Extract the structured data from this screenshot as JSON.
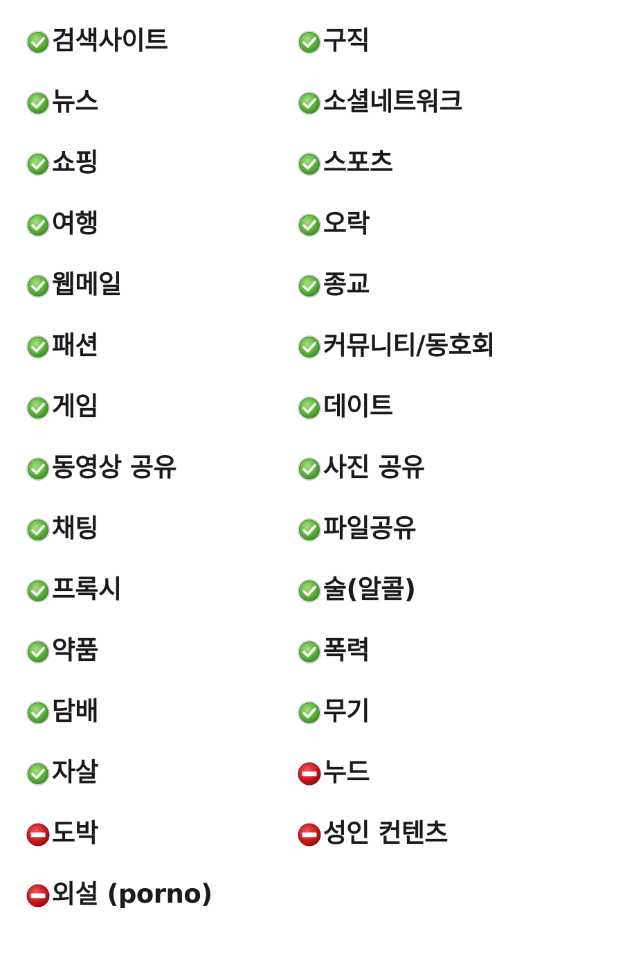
{
  "categories": [
    {
      "label": "검색사이트",
      "status": "allowed",
      "icon": "check-circle-icon"
    },
    {
      "label": "구직",
      "status": "allowed",
      "icon": "check-circle-icon"
    },
    {
      "label": "뉴스",
      "status": "allowed",
      "icon": "check-circle-icon"
    },
    {
      "label": "소셜네트워크",
      "status": "allowed",
      "icon": "check-circle-icon"
    },
    {
      "label": "쇼핑",
      "status": "allowed",
      "icon": "check-circle-icon"
    },
    {
      "label": "스포츠",
      "status": "allowed",
      "icon": "check-circle-icon"
    },
    {
      "label": "여행",
      "status": "allowed",
      "icon": "check-circle-icon"
    },
    {
      "label": "오락",
      "status": "allowed",
      "icon": "check-circle-icon"
    },
    {
      "label": "웹메일",
      "status": "allowed",
      "icon": "check-circle-icon"
    },
    {
      "label": "종교",
      "status": "allowed",
      "icon": "check-circle-icon"
    },
    {
      "label": "패션",
      "status": "allowed",
      "icon": "check-circle-icon"
    },
    {
      "label": "커뮤니티/동호회",
      "status": "allowed",
      "icon": "check-circle-icon"
    },
    {
      "label": "게임",
      "status": "allowed",
      "icon": "check-circle-icon"
    },
    {
      "label": "데이트",
      "status": "allowed",
      "icon": "check-circle-icon"
    },
    {
      "label": "동영상 공유",
      "status": "allowed",
      "icon": "check-circle-icon"
    },
    {
      "label": "사진 공유",
      "status": "allowed",
      "icon": "check-circle-icon"
    },
    {
      "label": "채팅",
      "status": "allowed",
      "icon": "check-circle-icon"
    },
    {
      "label": "파일공유",
      "status": "allowed",
      "icon": "check-circle-icon"
    },
    {
      "label": "프록시",
      "status": "allowed",
      "icon": "check-circle-icon"
    },
    {
      "label": "술(알콜)",
      "status": "allowed",
      "icon": "check-circle-icon"
    },
    {
      "label": "약품",
      "status": "allowed",
      "icon": "check-circle-icon"
    },
    {
      "label": "폭력",
      "status": "allowed",
      "icon": "check-circle-icon"
    },
    {
      "label": "담배",
      "status": "allowed",
      "icon": "check-circle-icon"
    },
    {
      "label": "무기",
      "status": "allowed",
      "icon": "check-circle-icon"
    },
    {
      "label": "자살",
      "status": "allowed",
      "icon": "check-circle-icon"
    },
    {
      "label": "누드",
      "status": "blocked",
      "icon": "no-entry-icon"
    },
    {
      "label": "도박",
      "status": "blocked",
      "icon": "no-entry-icon"
    },
    {
      "label": "성인 컨텐츠",
      "status": "blocked",
      "icon": "no-entry-icon"
    },
    {
      "label": "외설 (porno)",
      "status": "blocked",
      "icon": "no-entry-icon"
    }
  ],
  "colors": {
    "allowed": "#5cb33c",
    "blocked": "#c8161b",
    "text": "#1a1a1a"
  }
}
